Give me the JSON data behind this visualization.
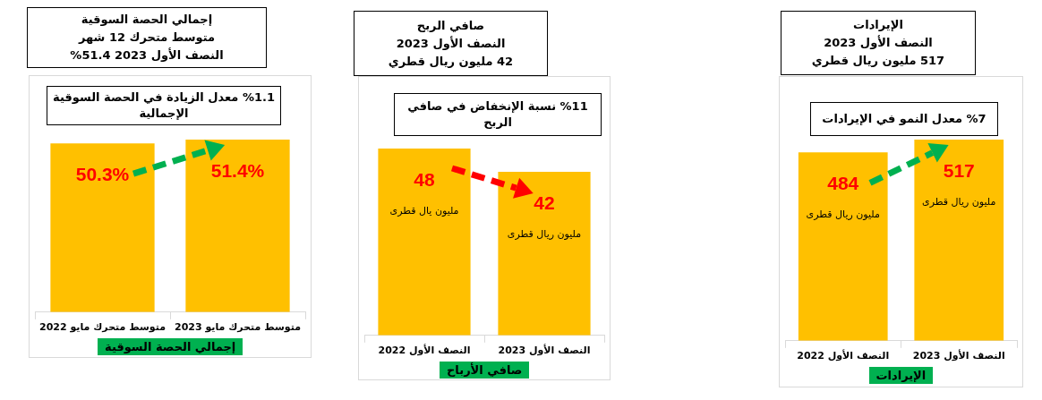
{
  "chart_data": [
    {
      "type": "bar",
      "title": "إجمالي الحصة السوقية\nمتوسط متحرك 12 شهر\nالنصف الأول 2023  51.4%",
      "subtitle": "%1.1 معدل الزيادة في الحصة السوقية الإجمالية",
      "xlabel": "إجمالي الحصة السوقية",
      "categories": [
        "متوسط متحرك مايو 2022",
        "متوسط متحرك مايو 2023"
      ],
      "values": [
        50.3,
        51.4
      ],
      "value_labels": [
        "50.3%",
        "51.4%"
      ],
      "color": "#ffc000",
      "tick_labels": "x"
    },
    {
      "type": "bar",
      "title": "صافي الربح\nالنصف الأول 2023\n42 مليون ريال قطري",
      "subtitle": "%11 نسبة الإنخفاض في صافي الربح",
      "xlabel": "صافي الأرباح",
      "categories": [
        "النصف الأول 2022",
        "النصف الأول 2023"
      ],
      "values": [
        48,
        42
      ],
      "data_labels": true,
      "color": "#ffc000",
      "tick_labels": "x",
      "annotations": [
        "مليون يال قطرى",
        "مليون ريال قطرى"
      ]
    },
    {
      "type": "bar",
      "title": "الإيرادات\nالنصف الأول 2023\n517 مليون ريال قطري",
      "subtitle": "%7 معدل النمو في الإيرادات",
      "xlabel": "الإيرادات",
      "categories": [
        "النصف الأول 2022",
        "النصف الأول 2023"
      ],
      "values": [
        484,
        517
      ],
      "data_labels": true,
      "color": "#ffc000",
      "tick_labels": "x",
      "annotations": [
        "مليون ريال قطرى",
        "مليون ريال قطرى"
      ]
    }
  ]
}
